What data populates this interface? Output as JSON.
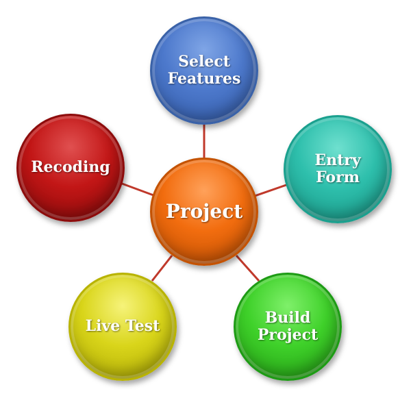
{
  "center": {
    "label": "Project",
    "color": "#f26d0f"
  },
  "nodes": [
    {
      "label": "Select\nFeatures",
      "color": "#4d79cc"
    },
    {
      "label": "Entry\nForm",
      "color": "#2ebfac"
    },
    {
      "label": "Build\nProject",
      "color": "#3fd12a"
    },
    {
      "label": "Live Test",
      "color": "#d9d51a"
    },
    {
      "label": "Recoding",
      "color": "#c21616"
    }
  ],
  "connector_color": "#c0392b"
}
